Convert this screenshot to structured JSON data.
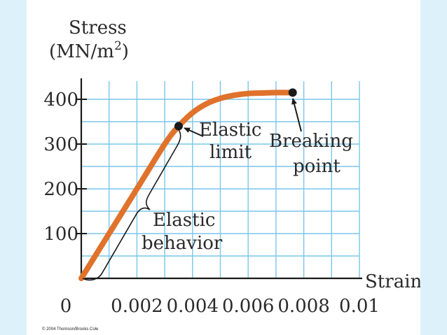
{
  "chart_data": {
    "type": "line",
    "ylabel_line1": "Stress",
    "ylabel_line2_base": "(MN/m",
    "ylabel_line2_sup": "2",
    "ylabel_line2_end": ")",
    "xlabel": "Strain",
    "xlim": [
      0,
      0.01
    ],
    "ylim": [
      0,
      450
    ],
    "x_ticks": [
      {
        "value": 0,
        "label": "0"
      },
      {
        "value": 0.002,
        "label": "0.002"
      },
      {
        "value": 0.004,
        "label": "0.004"
      },
      {
        "value": 0.006,
        "label": "0.006"
      },
      {
        "value": 0.008,
        "label": "0.008"
      },
      {
        "value": 0.01,
        "label": "0.01"
      }
    ],
    "y_ticks": [
      {
        "value": 100,
        "label": "100"
      },
      {
        "value": 200,
        "label": "200"
      },
      {
        "value": 300,
        "label": "300"
      },
      {
        "value": 400,
        "label": "400"
      }
    ],
    "grid": true,
    "series": [
      {
        "color": "#e0722c",
        "points": [
          [
            0,
            0
          ],
          [
            0.001,
            100
          ],
          [
            0.002,
            200
          ],
          [
            0.003,
            300
          ],
          [
            0.0035,
            340
          ],
          [
            0.004,
            370
          ],
          [
            0.0045,
            390
          ],
          [
            0.005,
            402
          ],
          [
            0.0055,
            409
          ],
          [
            0.006,
            413
          ],
          [
            0.0065,
            414
          ],
          [
            0.007,
            415
          ],
          [
            0.0076,
            415
          ]
        ]
      }
    ],
    "markers": [
      {
        "x": 0.0035,
        "y": 340
      },
      {
        "x": 0.0076,
        "y": 415
      }
    ],
    "annotations": {
      "elastic_limit": [
        "Elastic",
        "limit"
      ],
      "breaking_point": [
        "Breaking",
        "point"
      ],
      "elastic_behavior": [
        "Elastic",
        "behavior"
      ]
    }
  },
  "copyright": "© 2004 Thomson/Brooks Cole",
  "colors": {
    "grid": "#7ac6e8",
    "axis": "#1a1a1a",
    "curve": "#e0722c",
    "marker": "#1a1a1a",
    "page_bg": "#ddf1fa"
  }
}
